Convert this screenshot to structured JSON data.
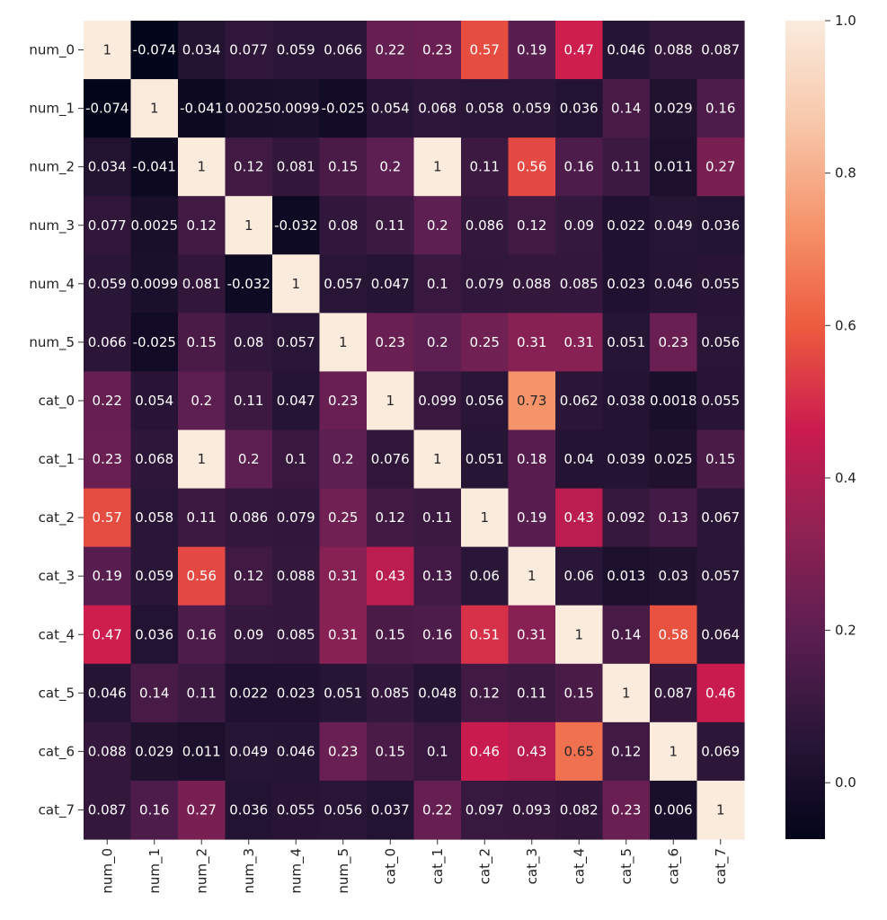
{
  "chart_data": {
    "type": "heatmap",
    "title": "",
    "xlabel": "",
    "ylabel": "",
    "x_labels": [
      "num_0",
      "num_1",
      "num_2",
      "num_3",
      "num_4",
      "num_5",
      "cat_0",
      "cat_1",
      "cat_2",
      "cat_3",
      "cat_4",
      "cat_5",
      "cat_6",
      "cat_7"
    ],
    "y_labels": [
      "num_0",
      "num_1",
      "num_2",
      "num_3",
      "num_4",
      "num_5",
      "cat_0",
      "cat_1",
      "cat_2",
      "cat_3",
      "cat_4",
      "cat_5",
      "cat_6",
      "cat_7"
    ],
    "values": [
      [
        1,
        -0.074,
        0.034,
        0.077,
        0.059,
        0.066,
        0.22,
        0.23,
        0.57,
        0.19,
        0.47,
        0.046,
        0.088,
        0.087
      ],
      [
        -0.074,
        1,
        -0.041,
        0.0025,
        0.0099,
        -0.025,
        0.054,
        0.068,
        0.058,
        0.059,
        0.036,
        0.14,
        0.029,
        0.16
      ],
      [
        0.034,
        -0.041,
        1,
        0.12,
        0.081,
        0.15,
        0.2,
        1,
        0.11,
        0.56,
        0.16,
        0.11,
        0.011,
        0.27
      ],
      [
        0.077,
        0.0025,
        0.12,
        1,
        -0.032,
        0.08,
        0.11,
        0.2,
        0.086,
        0.12,
        0.09,
        0.022,
        0.049,
        0.036
      ],
      [
        0.059,
        0.0099,
        0.081,
        -0.032,
        1,
        0.057,
        0.047,
        0.1,
        0.079,
        0.088,
        0.085,
        0.023,
        0.046,
        0.055
      ],
      [
        0.066,
        -0.025,
        0.15,
        0.08,
        0.057,
        1,
        0.23,
        0.2,
        0.25,
        0.31,
        0.31,
        0.051,
        0.23,
        0.056
      ],
      [
        0.22,
        0.054,
        0.2,
        0.11,
        0.047,
        0.23,
        1,
        0.099,
        0.056,
        0.73,
        0.062,
        0.038,
        0.0018,
        0.055
      ],
      [
        0.23,
        0.068,
        1,
        0.2,
        0.1,
        0.2,
        0.076,
        1,
        0.051,
        0.18,
        0.04,
        0.039,
        0.025,
        0.15
      ],
      [
        0.57,
        0.058,
        0.11,
        0.086,
        0.079,
        0.25,
        0.12,
        0.11,
        1,
        0.19,
        0.43,
        0.092,
        0.13,
        0.067
      ],
      [
        0.19,
        0.059,
        0.56,
        0.12,
        0.088,
        0.31,
        0.43,
        0.13,
        0.06,
        1,
        0.06,
        0.013,
        0.03,
        0.057
      ],
      [
        0.47,
        0.036,
        0.16,
        0.09,
        0.085,
        0.31,
        0.15,
        0.16,
        0.51,
        0.31,
        1,
        0.14,
        0.58,
        0.064
      ],
      [
        0.046,
        0.14,
        0.11,
        0.022,
        0.023,
        0.051,
        0.085,
        0.048,
        0.12,
        0.11,
        0.15,
        1,
        0.087,
        0.46
      ],
      [
        0.088,
        0.029,
        0.011,
        0.049,
        0.046,
        0.23,
        0.15,
        0.1,
        0.46,
        0.43,
        0.65,
        0.12,
        1,
        0.069
      ],
      [
        0.087,
        0.16,
        0.27,
        0.036,
        0.055,
        0.056,
        0.037,
        0.22,
        0.097,
        0.093,
        0.082,
        0.23,
        0.006,
        1
      ]
    ],
    "cell_labels": [
      [
        "1",
        "-0.074",
        "0.034",
        "0.077",
        "0.059",
        "0.066",
        "0.22",
        "0.23",
        "0.57",
        "0.19",
        "0.47",
        "0.046",
        "0.088",
        "0.087"
      ],
      [
        "-0.074",
        "1",
        "-0.041",
        "0.0025",
        "0.0099",
        "-0.025",
        "0.054",
        "0.068",
        "0.058",
        "0.059",
        "0.036",
        "0.14",
        "0.029",
        "0.16"
      ],
      [
        "0.034",
        "-0.041",
        "1",
        "0.12",
        "0.081",
        "0.15",
        "0.2",
        "1",
        "0.11",
        "0.56",
        "0.16",
        "0.11",
        "0.011",
        "0.27"
      ],
      [
        "0.077",
        "0.0025",
        "0.12",
        "1",
        "-0.032",
        "0.08",
        "0.11",
        "0.2",
        "0.086",
        "0.12",
        "0.09",
        "0.022",
        "0.049",
        "0.036"
      ],
      [
        "0.059",
        "0.0099",
        "0.081",
        "-0.032",
        "1",
        "0.057",
        "0.047",
        "0.1",
        "0.079",
        "0.088",
        "0.085",
        "0.023",
        "0.046",
        "0.055"
      ],
      [
        "0.066",
        "-0.025",
        "0.15",
        "0.08",
        "0.057",
        "1",
        "0.23",
        "0.2",
        "0.25",
        "0.31",
        "0.31",
        "0.051",
        "0.23",
        "0.056"
      ],
      [
        "0.22",
        "0.054",
        "0.2",
        "0.11",
        "0.047",
        "0.23",
        "1",
        "0.099",
        "0.056",
        "0.73",
        "0.062",
        "0.038",
        "0.0018",
        "0.055"
      ],
      [
        "0.23",
        "0.068",
        "1",
        "0.2",
        "0.1",
        "0.2",
        "0.076",
        "1",
        "0.051",
        "0.18",
        "0.04",
        "0.039",
        "0.025",
        "0.15"
      ],
      [
        "0.57",
        "0.058",
        "0.11",
        "0.086",
        "0.079",
        "0.25",
        "0.12",
        "0.11",
        "1",
        "0.19",
        "0.43",
        "0.092",
        "0.13",
        "0.067"
      ],
      [
        "0.19",
        "0.059",
        "0.56",
        "0.12",
        "0.088",
        "0.31",
        "0.43",
        "0.13",
        "0.06",
        "1",
        "0.06",
        "0.013",
        "0.03",
        "0.057"
      ],
      [
        "0.47",
        "0.036",
        "0.16",
        "0.09",
        "0.085",
        "0.31",
        "0.15",
        "0.16",
        "0.51",
        "0.31",
        "1",
        "0.14",
        "0.58",
        "0.064"
      ],
      [
        "0.046",
        "0.14",
        "0.11",
        "0.022",
        "0.023",
        "0.051",
        "0.085",
        "0.048",
        "0.12",
        "0.11",
        "0.15",
        "1",
        "0.087",
        "0.46"
      ],
      [
        "0.088",
        "0.029",
        "0.011",
        "0.049",
        "0.046",
        "0.23",
        "0.15",
        "0.1",
        "0.46",
        "0.43",
        "0.65",
        "0.12",
        "1",
        "0.069"
      ],
      [
        "0.087",
        "0.16",
        "0.27",
        "0.036",
        "0.055",
        "0.056",
        "0.037",
        "0.22",
        "0.097",
        "0.093",
        "0.082",
        "0.23",
        "0.006",
        "1"
      ]
    ],
    "colorbar": {
      "range": [
        -0.074,
        1.0
      ],
      "ticks": [
        0.0,
        0.2,
        0.4,
        0.6,
        0.8,
        1.0
      ],
      "tick_labels": [
        "0.0",
        "0.2",
        "0.4",
        "0.6",
        "0.8",
        "1.0"
      ]
    },
    "colormap": {
      "name": "rocket",
      "stops": [
        "#03051a",
        "#2a1637",
        "#5b1e51",
        "#8f2253",
        "#cb1b4f",
        "#ed5a3e",
        "#f5946b",
        "#f7c7aa",
        "#faebdd"
      ]
    },
    "grid": false,
    "legend": "colorbar-right"
  }
}
